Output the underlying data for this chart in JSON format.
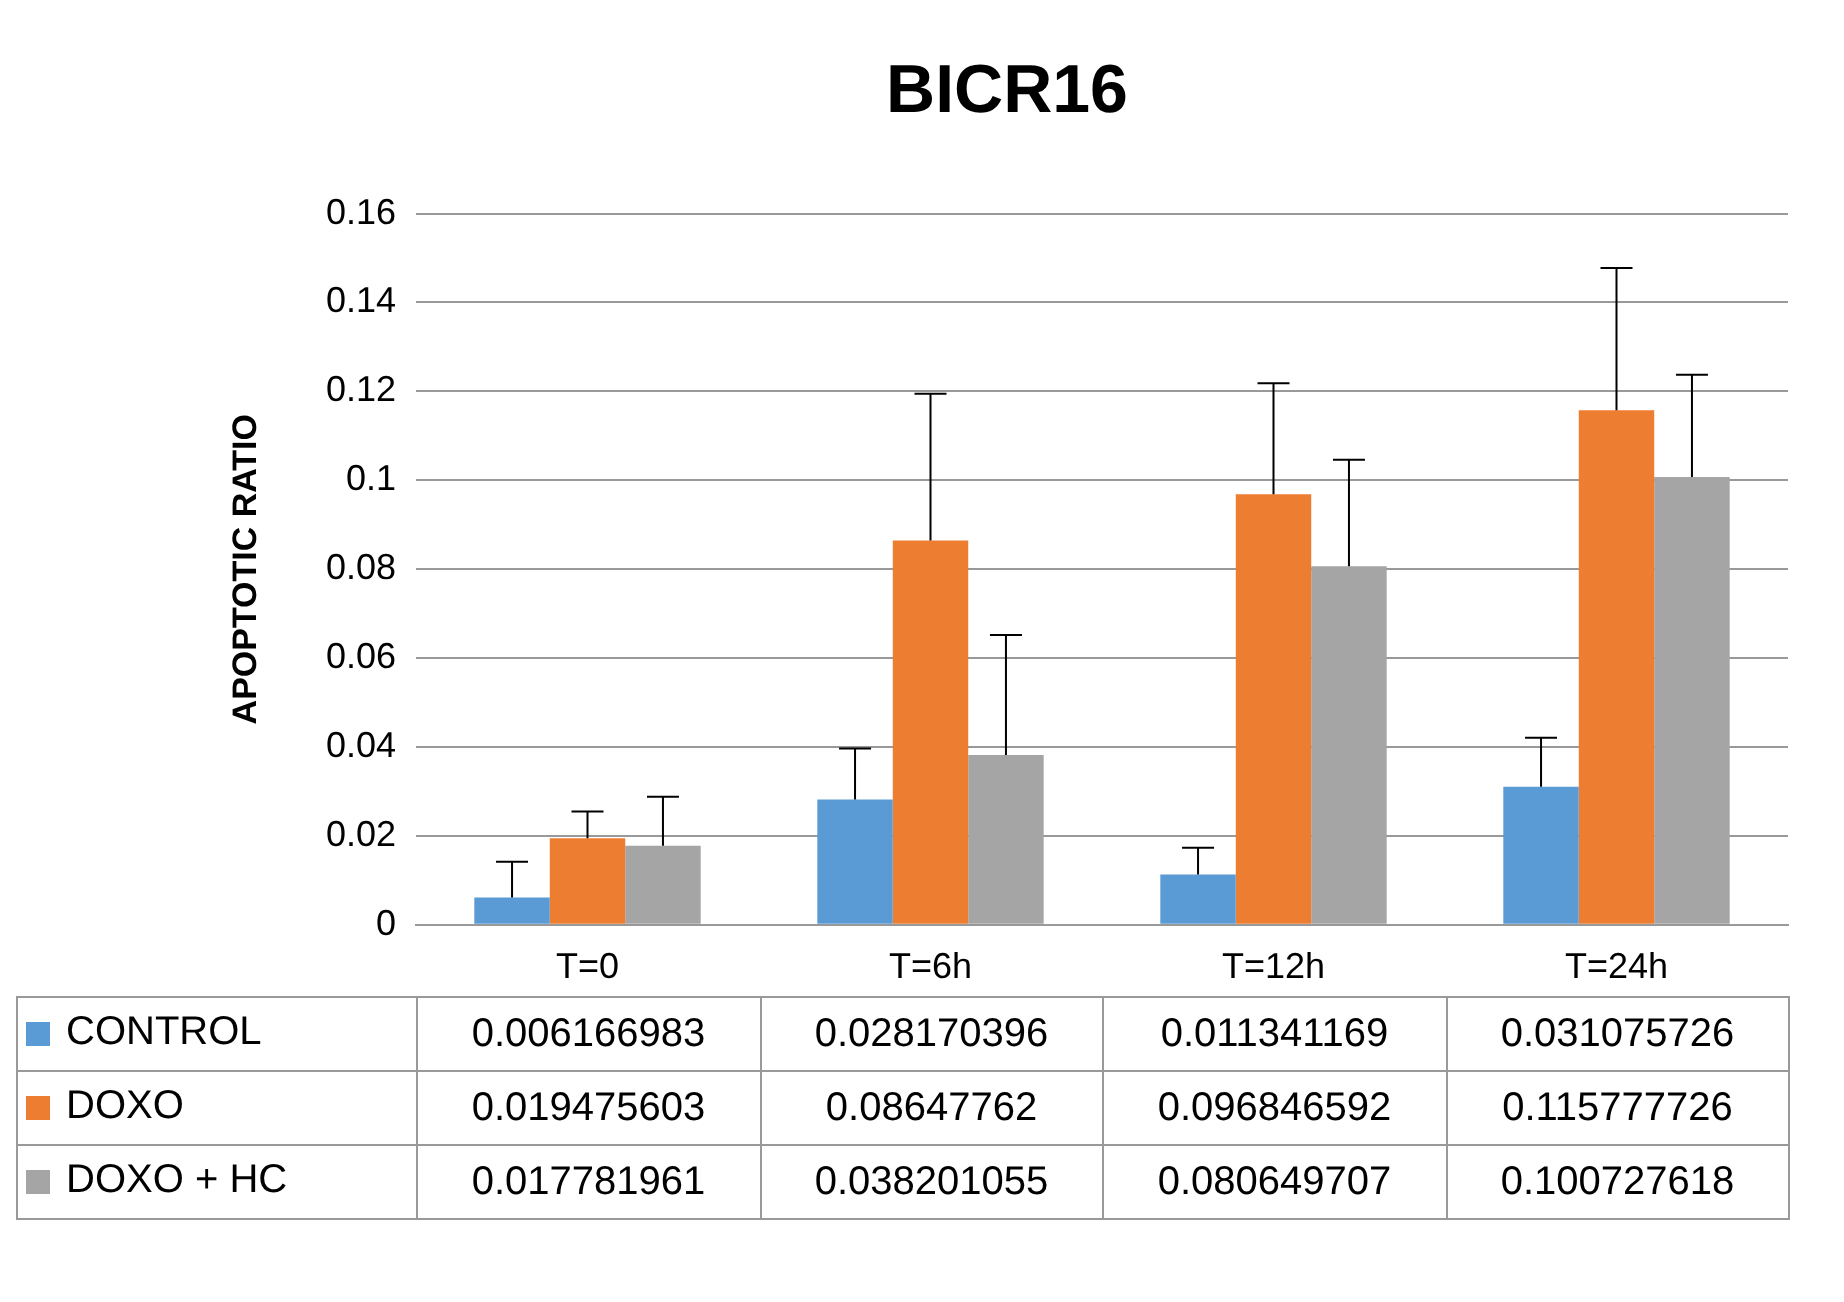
{
  "chart_data": {
    "type": "bar",
    "title": "BICR16",
    "ylabel": "APOPTOTIC RATIO",
    "categories": [
      "T=0",
      "T=6h",
      "T=12h",
      "T=24h"
    ],
    "series": [
      {
        "name": "CONTROL",
        "color": "#5b9bd5",
        "values": [
          0.006166983,
          0.028170396,
          0.011341169,
          0.031075726
        ],
        "errors": [
          0.008,
          0.0115,
          0.006,
          0.011
        ]
      },
      {
        "name": "DOXO",
        "color": "#ed7d31",
        "values": [
          0.019475603,
          0.08647762,
          0.096846592,
          0.115777726
        ],
        "errors": [
          0.006,
          0.033,
          0.025,
          0.032
        ]
      },
      {
        "name": "DOXO + HC",
        "color": "#a5a5a5",
        "values": [
          0.017781961,
          0.038201055,
          0.080649707,
          0.100727618
        ],
        "errors": [
          0.011,
          0.027,
          0.024,
          0.023
        ]
      }
    ],
    "ylim": [
      0,
      0.16
    ],
    "yticks": [
      0,
      0.02,
      0.04,
      0.06,
      0.08,
      0.1,
      0.12,
      0.14,
      0.16
    ],
    "grid": "y",
    "legend": "bottom",
    "data_labels": true
  }
}
